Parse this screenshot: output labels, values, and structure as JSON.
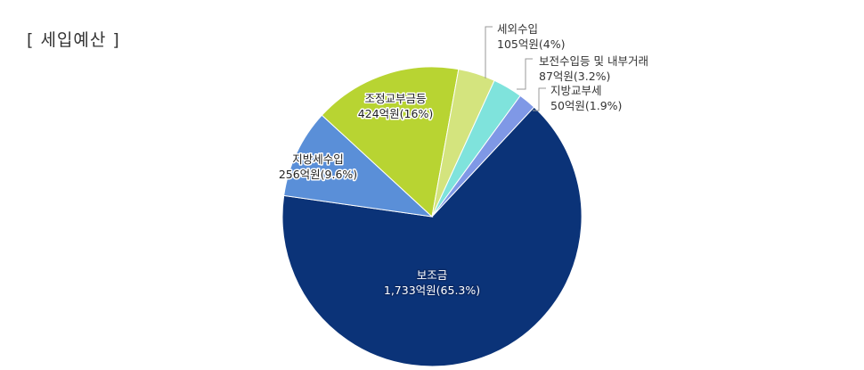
{
  "header": {
    "title": "[ 세입예산 ]"
  },
  "chart_data": {
    "type": "pie",
    "slices": [
      {
        "name": "보조금",
        "value_label": "1,733억원(65.3%)",
        "percent": 65.3,
        "color": "#0b3378"
      },
      {
        "name": "지방세수입",
        "value_label": "256억원(9.6%)",
        "percent": 9.6,
        "color": "#5a8fd8"
      },
      {
        "name": "조정교부금등",
        "value_label": "424억원(16%)",
        "percent": 16.0,
        "color": "#b8d432"
      },
      {
        "name": "세외수입",
        "value_label": "105억원(4%)",
        "percent": 4.0,
        "color": "#d4e47e"
      },
      {
        "name": "보전수입등 및 내부거래",
        "value_label": "87억원(3.2%)",
        "percent": 3.2,
        "color": "#7fe3dc"
      },
      {
        "name": "지방교부세",
        "value_label": "50억원(1.9%)",
        "percent": 1.9,
        "color": "#7f98e6"
      }
    ]
  }
}
